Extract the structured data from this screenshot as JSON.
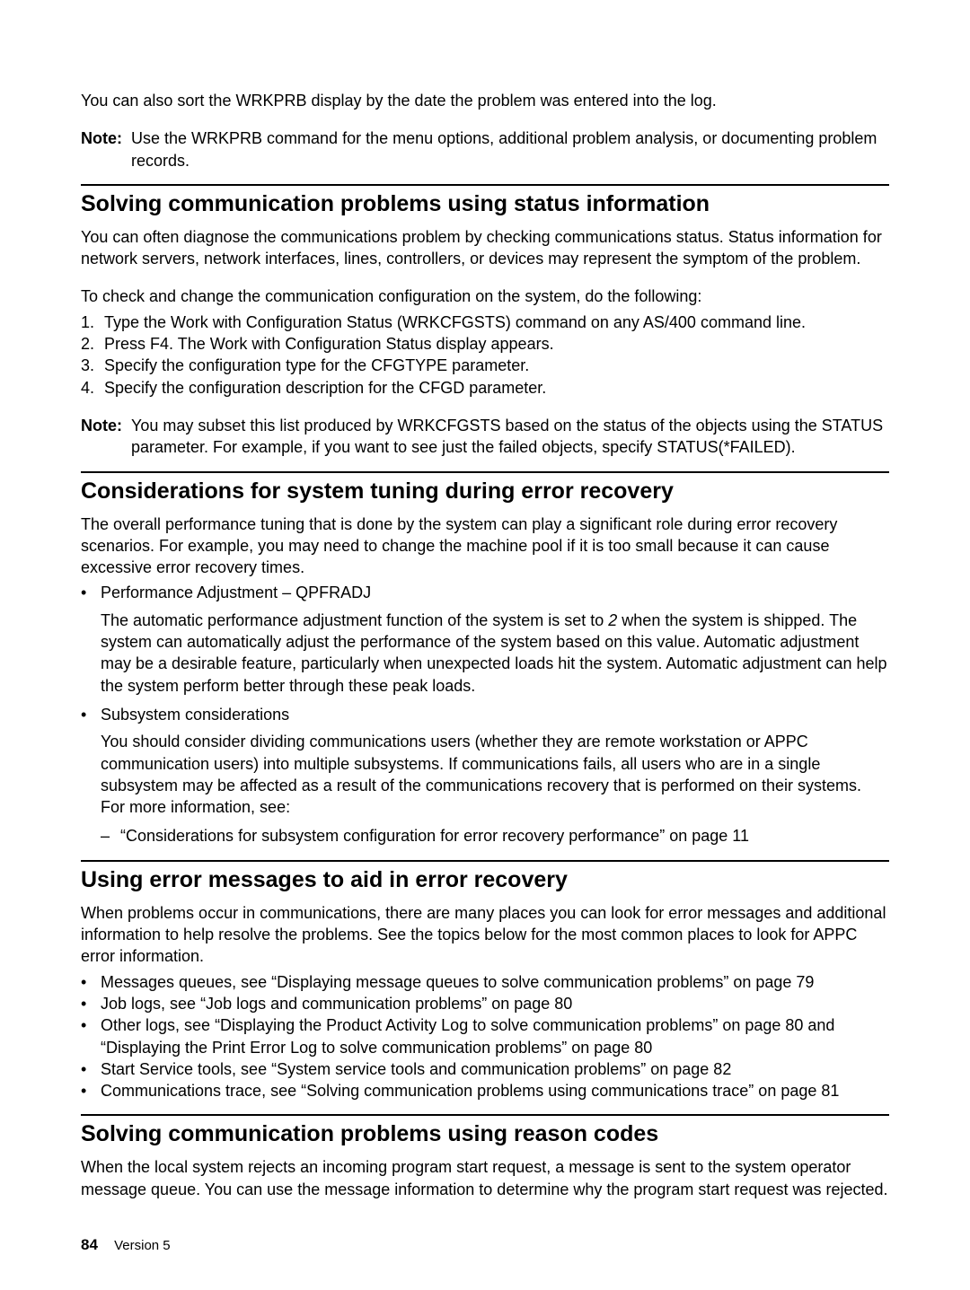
{
  "intro_para": "You can also sort the WRKPRB display by the date the problem was entered into the log.",
  "note1_label": "Note:",
  "note1_body": "Use the WRKPRB command for the menu options, additional problem analysis, or documenting problem records.",
  "sec1_title": "Solving communication problems using status information",
  "sec1_p1": "You can often diagnose the communications problem by checking communications status. Status information for network servers, network interfaces, lines, controllers, or devices may represent the symptom of the problem.",
  "sec1_p2": "To check and change the communication configuration on the system, do the following:",
  "sec1_ol": [
    "Type the Work with Configuration Status (WRKCFGSTS) command on any AS/400 command line.",
    "Press F4. The Work with Configuration Status display appears.",
    "Specify the configuration type for the CFGTYPE parameter.",
    "Specify the configuration description for the CFGD parameter."
  ],
  "note2_label": "Note:",
  "note2_body": "You may subset this list produced by WRKCFGSTS based on the status of the objects using the STATUS parameter. For example, if you want to see just the failed objects, specify STATUS(*FAILED).",
  "sec2_title": "Considerations for system tuning during error recovery",
  "sec2_p1": "The overall performance tuning that is done by the system can play a significant role during error recovery scenarios. For example, you may need to change the machine pool if it is too small because it can cause excessive error recovery times.",
  "sec2_b1_title": "Performance Adjustment – QPFRADJ",
  "sec2_b1_body_pre": "The automatic performance adjustment function of the system is set to ",
  "sec2_b1_body_em": "2",
  "sec2_b1_body_post": " when the system is shipped. The system can automatically adjust the performance of the system based on this value. Automatic adjustment may be a desirable feature, particularly when unexpected loads hit the system. Automatic adjustment can help the system perform better through these peak loads.",
  "sec2_b2_title": "Subsystem considerations",
  "sec2_b2_body": "You should consider dividing communications users (whether they are remote workstation or APPC communication users) into multiple subsystems. If communications fails, all users who are in a single subsystem may be affected as a result of the communications recovery that is performed on their systems. For more information, see:",
  "sec2_b2_ref": "“Considerations for subsystem configuration for error recovery performance” on page 11",
  "sec3_title": "Using error messages to aid in error recovery",
  "sec3_p1": "When problems occur in communications, there are many places you can look for error messages and additional information to help resolve the problems. See the topics below for the most common places to look for APPC error information.",
  "sec3_items": [
    "Messages queues, see “Displaying message queues to solve communication problems” on page 79",
    "Job logs, see “Job logs and communication problems” on page 80",
    "Other logs, see “Displaying the Product Activity Log to solve communication problems” on page 80 and “Displaying the Print Error Log to solve communication problems” on page 80",
    "Start Service tools, see “System service tools and communication problems” on page 82",
    "Communications trace, see “Solving communication problems using communications trace” on page 81"
  ],
  "sec4_title": "Solving communication problems using reason codes",
  "sec4_p1": "When the local system rejects an incoming program start request, a message is sent to the system operator message queue. You can use the message information to determine why the program start request was rejected.",
  "footer_page": "84",
  "footer_text": "Version 5"
}
